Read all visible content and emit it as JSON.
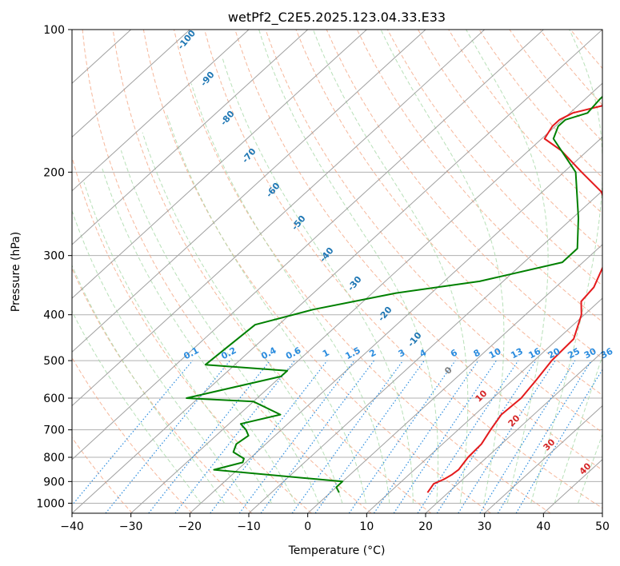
{
  "chart_data": {
    "type": "line",
    "title": "wetPf2_C2E5.2025.123.04.33.E33",
    "xlabel": "Temperature (°C)",
    "ylabel": "Pressure (hPa)",
    "xlim": [
      -40,
      50
    ],
    "ylim": [
      1050,
      100
    ],
    "yscale": "log",
    "xticks": [
      "−40",
      "−30",
      "−20",
      "−10",
      "0",
      "10",
      "20",
      "30",
      "40",
      "50"
    ],
    "yticks": [
      {
        "p": 100,
        "label": "100"
      },
      {
        "p": 200,
        "label": "200"
      },
      {
        "p": 300,
        "label": "300"
      },
      {
        "p": 400,
        "label": "400"
      },
      {
        "p": 500,
        "label": "500"
      },
      {
        "p": 600,
        "label": "600"
      },
      {
        "p": 700,
        "label": "700"
      },
      {
        "p": 800,
        "label": "800"
      },
      {
        "p": 900,
        "label": "900"
      },
      {
        "p": 1000,
        "label": "1000"
      }
    ],
    "grid": true,
    "colors": {
      "temperature": "#e41a1c",
      "dewpoint": "#008000",
      "isotherm": "#a0a0a0",
      "dry_adiabat": "#f4a582",
      "moist_adiabat": "#a6d8a6",
      "mixing_ratio": "#2b8cde",
      "label_blue": "#1f77b4",
      "label_red": "#d62728",
      "label_gray": "#808080"
    },
    "series": [
      {
        "key": "temperature",
        "points": [
          [
            16.5,
            950
          ],
          [
            16.2,
            930
          ],
          [
            15.9,
            910
          ],
          [
            16.8,
            890
          ],
          [
            17.3,
            870
          ],
          [
            17.5,
            850
          ],
          [
            16.8,
            800
          ],
          [
            16.6,
            750
          ],
          [
            15.5,
            700
          ],
          [
            14.5,
            650
          ],
          [
            14.8,
            600
          ],
          [
            14.0,
            550
          ],
          [
            13.0,
            500
          ],
          [
            12.7,
            450
          ],
          [
            9.5,
            400
          ],
          [
            7.0,
            375
          ],
          [
            6.5,
            350
          ],
          [
            3.0,
            300
          ],
          [
            -0.5,
            270
          ],
          [
            -3.5,
            250
          ],
          [
            -10.0,
            220
          ],
          [
            -17.0,
            200
          ],
          [
            -24.5,
            180
          ],
          [
            -29.5,
            170
          ],
          [
            -30.5,
            160
          ],
          [
            -30.5,
            155
          ],
          [
            -29.5,
            150
          ],
          [
            -26.0,
            145
          ],
          [
            -22.5,
            140
          ],
          [
            -16.5,
            130
          ],
          [
            -11.0,
            120
          ],
          [
            -6.0,
            110
          ],
          [
            -2.0,
            100
          ]
        ]
      },
      {
        "key": "dewpoint",
        "points": [
          [
            1.5,
            950
          ],
          [
            0.0,
            925
          ],
          [
            0.0,
            900
          ],
          [
            -24.0,
            850
          ],
          [
            -20.5,
            820
          ],
          [
            -21.0,
            805
          ],
          [
            -24.0,
            780
          ],
          [
            -25.0,
            750
          ],
          [
            -24.5,
            720
          ],
          [
            -26.0,
            700
          ],
          [
            -28.0,
            680
          ],
          [
            -23.0,
            650
          ],
          [
            -30.0,
            610
          ],
          [
            -42.0,
            600
          ],
          [
            -30.0,
            540
          ],
          [
            -30.0,
            525
          ],
          [
            -45.0,
            510
          ],
          [
            -44.0,
            420
          ],
          [
            -37.0,
            390
          ],
          [
            -26.0,
            360
          ],
          [
            -14.0,
            340
          ],
          [
            -3.5,
            310
          ],
          [
            -3.5,
            290
          ],
          [
            -9.0,
            250
          ],
          [
            -18.0,
            200
          ],
          [
            -28.0,
            170
          ],
          [
            -29.5,
            160
          ],
          [
            -29.5,
            155
          ],
          [
            -27.0,
            150
          ],
          [
            -27.5,
            140
          ],
          [
            -27.5,
            130
          ],
          [
            -25.0,
            115
          ],
          [
            -21.0,
            100
          ]
        ]
      }
    ],
    "mixing_ratio_labels": [
      "0.1",
      "0.2",
      "0.4",
      "0.6",
      "1",
      "1.5",
      "2",
      "3",
      "4",
      "6",
      "8",
      "10",
      "13",
      "16",
      "20",
      "25",
      "30",
      "36"
    ],
    "dry_adiabat_labels": [
      "-100",
      "-90",
      "-80",
      "-70",
      "-60",
      "-50",
      "-40",
      "-30",
      "-20",
      "-10"
    ],
    "moist_adiabat_labels": [
      "0",
      "10",
      "20",
      "30",
      "40"
    ]
  }
}
